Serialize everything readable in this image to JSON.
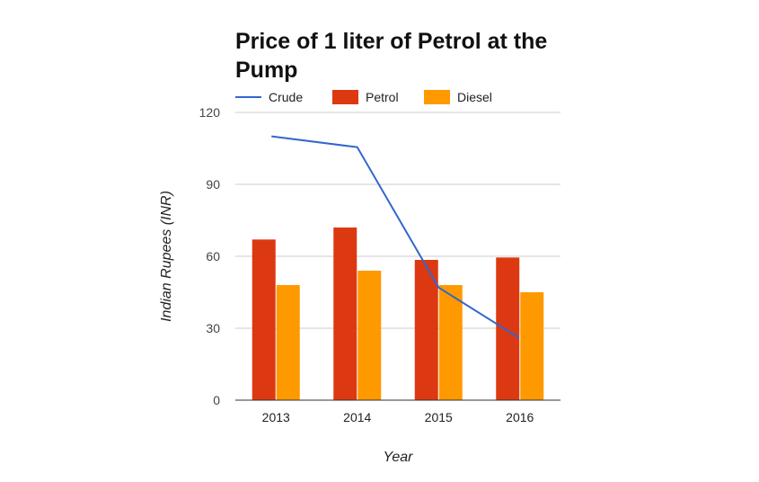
{
  "chart_data": {
    "type": "bar",
    "title": "Price of 1 liter of Petrol at the Pump",
    "xlabel": "Year",
    "ylabel": "Indian Rupees (INR)",
    "ylim": [
      0,
      120
    ],
    "yticks": [
      0,
      30,
      60,
      90,
      120
    ],
    "categories": [
      "2013",
      "2014",
      "2015",
      "2016"
    ],
    "legend_position": "top",
    "grid": true,
    "series": [
      {
        "name": "Crude",
        "type": "line",
        "color": "#3366cc",
        "values": [
          110,
          105.5,
          47,
          26
        ]
      },
      {
        "name": "Petrol",
        "type": "bar",
        "color": "#dc3912",
        "values": [
          67,
          72,
          58.5,
          59.5
        ]
      },
      {
        "name": "Diesel",
        "type": "bar",
        "color": "#ff9900",
        "values": [
          48,
          54,
          48,
          45
        ]
      }
    ]
  }
}
